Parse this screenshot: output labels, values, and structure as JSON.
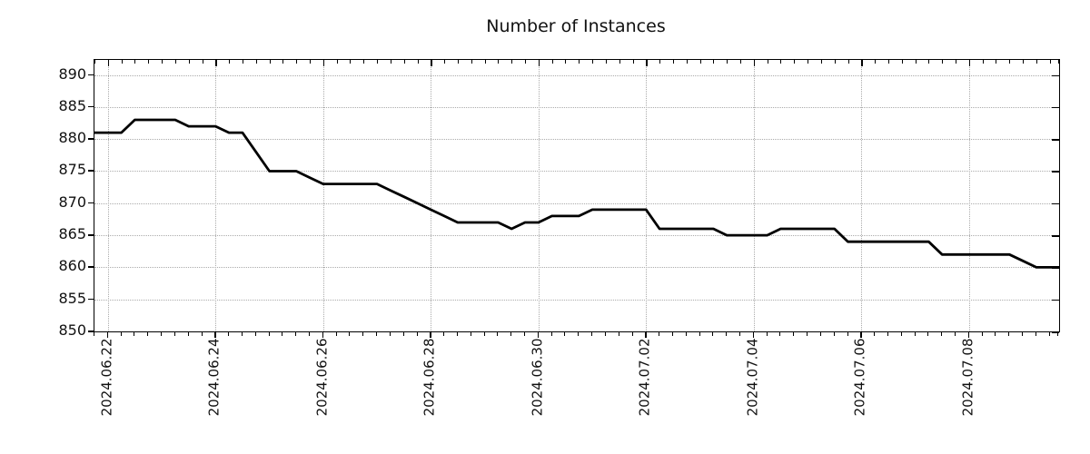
{
  "title": "Number of Instances",
  "chart_data": {
    "type": "line",
    "title": "Number of Instances",
    "xlabel": "",
    "ylabel": "",
    "legend": null,
    "grid": true,
    "grid_style": "dotted",
    "line_color": "#000000",
    "line_width": 2.8,
    "ylim": [
      850,
      892.35
    ],
    "y_ticks": [
      850,
      855,
      860,
      865,
      870,
      875,
      880,
      885,
      890
    ],
    "x_tick_labels": [
      "2024.06.22",
      "2024.06.24",
      "2024.06.26",
      "2024.06.28",
      "2024.06.30",
      "2024.07.02",
      "2024.07.04",
      "2024.07.06",
      "2024.07.08"
    ],
    "x_start": "2024-06-21 18:00",
    "x_step_hours": 6,
    "x": [
      "2024-06-21 18:00",
      "2024-06-22 00:00",
      "2024-06-22 06:00",
      "2024-06-22 12:00",
      "2024-06-22 18:00",
      "2024-06-23 00:00",
      "2024-06-23 06:00",
      "2024-06-23 12:00",
      "2024-06-23 18:00",
      "2024-06-24 00:00",
      "2024-06-24 06:00",
      "2024-06-24 12:00",
      "2024-06-24 18:00",
      "2024-06-25 00:00",
      "2024-06-25 06:00",
      "2024-06-25 12:00",
      "2024-06-25 18:00",
      "2024-06-26 00:00",
      "2024-06-26 06:00",
      "2024-06-26 12:00",
      "2024-06-26 18:00",
      "2024-06-27 00:00",
      "2024-06-27 06:00",
      "2024-06-27 12:00",
      "2024-06-27 18:00",
      "2024-06-28 00:00",
      "2024-06-28 06:00",
      "2024-06-28 12:00",
      "2024-06-28 18:00",
      "2024-06-29 00:00",
      "2024-06-29 06:00",
      "2024-06-29 12:00",
      "2024-06-29 18:00",
      "2024-06-30 00:00",
      "2024-06-30 06:00",
      "2024-06-30 12:00",
      "2024-06-30 18:00",
      "2024-07-01 00:00",
      "2024-07-01 06:00",
      "2024-07-01 12:00",
      "2024-07-01 18:00",
      "2024-07-02 00:00",
      "2024-07-02 06:00",
      "2024-07-02 12:00",
      "2024-07-02 18:00",
      "2024-07-03 00:00",
      "2024-07-03 06:00",
      "2024-07-03 12:00",
      "2024-07-03 18:00",
      "2024-07-04 00:00",
      "2024-07-04 06:00",
      "2024-07-04 12:00",
      "2024-07-04 18:00",
      "2024-07-05 00:00",
      "2024-07-05 06:00",
      "2024-07-05 12:00",
      "2024-07-05 18:00",
      "2024-07-06 00:00",
      "2024-07-06 06:00",
      "2024-07-06 12:00",
      "2024-07-06 18:00",
      "2024-07-07 00:00",
      "2024-07-07 06:00",
      "2024-07-07 12:00",
      "2024-07-07 18:00",
      "2024-07-08 00:00",
      "2024-07-08 06:00",
      "2024-07-08 12:00",
      "2024-07-08 18:00",
      "2024-07-09 00:00",
      "2024-07-09 06:00",
      "2024-07-09 12:00",
      "2024-07-09 18:00"
    ],
    "values": [
      881,
      881,
      881,
      883,
      883,
      883,
      883,
      882,
      882,
      882,
      881,
      881,
      878,
      875,
      875,
      875,
      874,
      873,
      873,
      873,
      873,
      873,
      872,
      871,
      870,
      869,
      868,
      867,
      867,
      867,
      867,
      866,
      867,
      867,
      868,
      868,
      868,
      869,
      869,
      869,
      869,
      869,
      866,
      866,
      866,
      866,
      866,
      865,
      865,
      865,
      865,
      866,
      866,
      866,
      866,
      866,
      864,
      864,
      864,
      864,
      864,
      864,
      864,
      862,
      862,
      862,
      862,
      862,
      862,
      861,
      860,
      860,
      860
    ]
  }
}
